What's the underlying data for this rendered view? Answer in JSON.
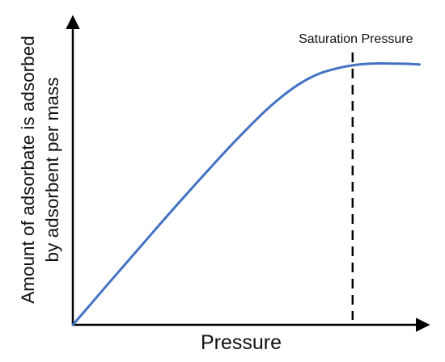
{
  "chart_data": {
    "type": "line",
    "title": "",
    "xlabel": "Pressure",
    "ylabel_line1": "Amount of adsorbate is adsorbed",
    "ylabel_line2": "by adsorbent per mass",
    "xlim": [
      0,
      1
    ],
    "ylim": [
      0,
      1
    ],
    "grid": false,
    "series": [
      {
        "color": "#4472C4",
        "x": [
          0,
          0.05,
          0.1,
          0.15,
          0.2,
          0.25,
          0.3,
          0.35,
          0.4,
          0.45,
          0.5,
          0.55,
          0.6,
          0.65,
          0.7,
          0.75,
          0.8,
          0.85,
          0.9,
          0.95,
          0.985
        ],
        "y": [
          0,
          0.066,
          0.133,
          0.199,
          0.265,
          0.331,
          0.396,
          0.46,
          0.523,
          0.585,
          0.644,
          0.7,
          0.749,
          0.789,
          0.818,
          0.835,
          0.846,
          0.851,
          0.851,
          0.85,
          0.848
        ]
      }
    ],
    "annotations": [
      {
        "type": "vline",
        "x": 0.795,
        "label": "Saturation Pressure",
        "style": "dashed",
        "color": "#000000"
      }
    ]
  }
}
